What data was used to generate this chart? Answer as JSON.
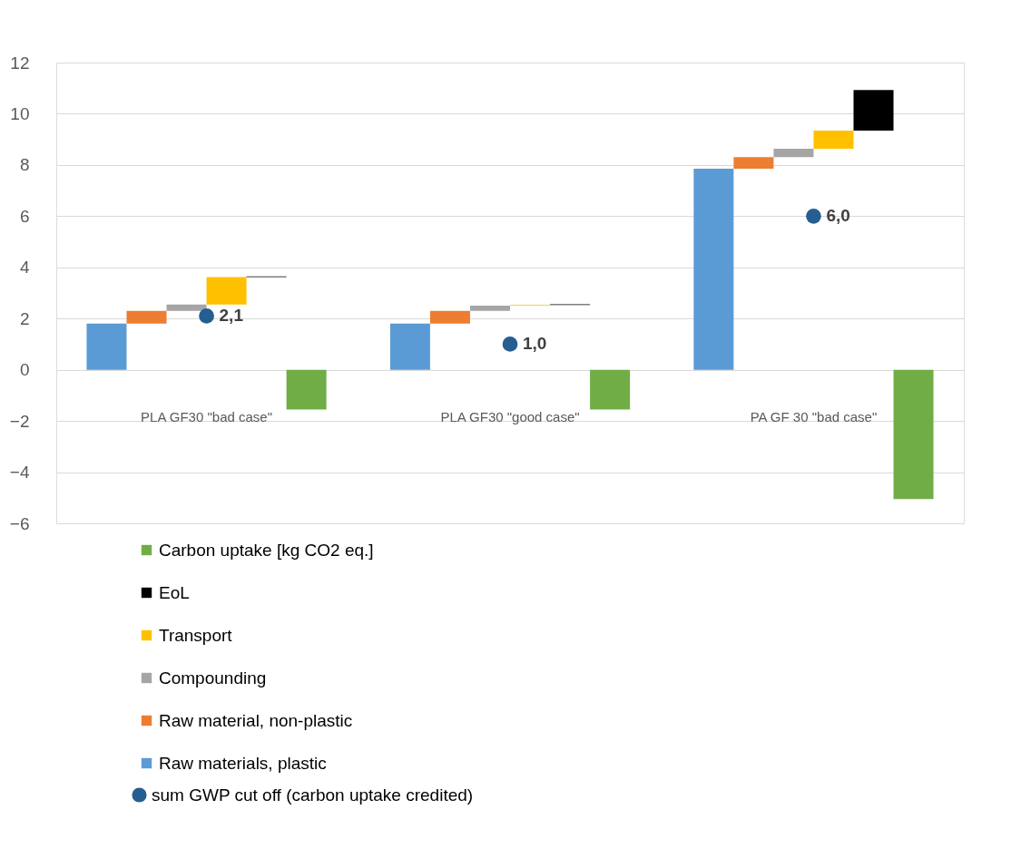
{
  "chart_data": {
    "type": "bar",
    "categories": [
      "PLA  GF30  \"bad case\"",
      "PLA GF30  \"good case\"",
      "PA GF 30 \"bad case\""
    ],
    "series": [
      {
        "name": "Raw materials, plastic",
        "color": "#5b9bd5",
        "values": [
          1.8,
          1.8,
          7.85
        ]
      },
      {
        "name": "Raw material, non-plastic",
        "color": "#ed7d31",
        "base": [
          1.8,
          1.8,
          7.85
        ],
        "values": [
          0.5,
          0.5,
          0.46
        ]
      },
      {
        "name": "Compounding",
        "color": "#a5a5a5",
        "base": [
          2.3,
          2.3,
          8.31
        ],
        "values": [
          0.25,
          0.2,
          0.32
        ]
      },
      {
        "name": "Transport",
        "color": "#ffc000",
        "base": [
          2.55,
          2.5,
          8.63
        ],
        "values": [
          1.07,
          0.03,
          0.71
        ]
      },
      {
        "name": "EoL",
        "color": "#000000",
        "base": [
          3.62,
          2.53,
          9.34
        ],
        "values": [
          0.03,
          0.03,
          1.59
        ]
      },
      {
        "name": "Carbon uptake [kg CO2 eq.]",
        "color": "#70ad47",
        "values": [
          -1.55,
          -1.55,
          -5.05
        ]
      },
      {
        "name": "sum GWP  cut off (carbon uptake credited)",
        "type": "scatter",
        "marker": "circle",
        "color": "#255e91",
        "values": [
          2.1,
          1.0,
          6.0
        ],
        "value_labels": [
          "2,1",
          "1,0",
          "6,0"
        ]
      }
    ],
    "ylim": [
      -6,
      12
    ],
    "yticks": [
      -6,
      -4,
      -2,
      0,
      2,
      4,
      6,
      8,
      10,
      12
    ],
    "grid": "y",
    "legend": "bottom"
  }
}
